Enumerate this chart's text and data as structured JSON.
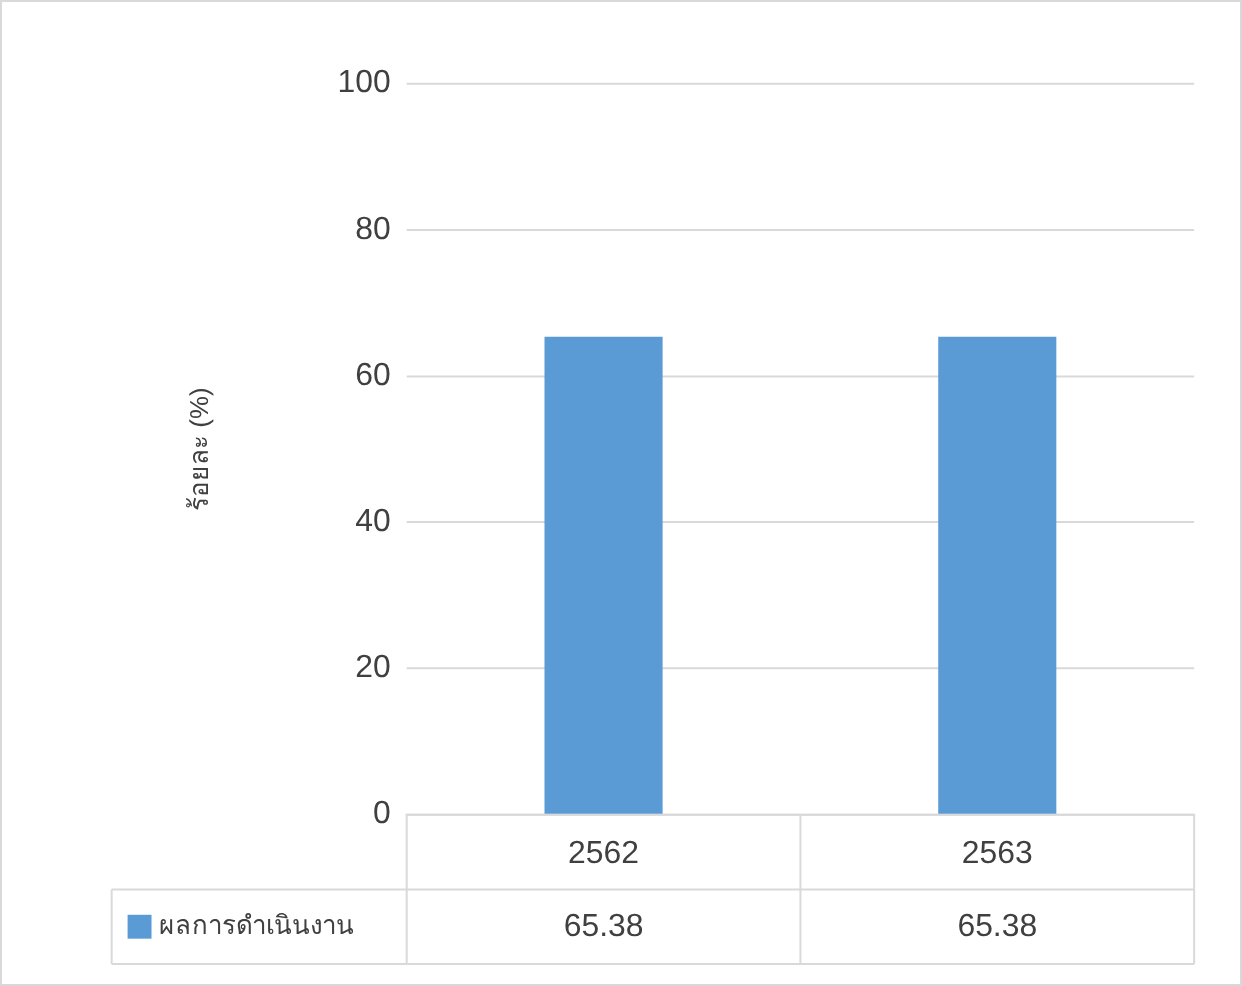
{
  "chart_data": {
    "type": "bar",
    "ylabel": "ร้อยละ (%)",
    "categories": [
      "2562",
      "2563"
    ],
    "series": [
      {
        "name": "ผลการดำเนินงาน",
        "color": "#5b9bd5",
        "values": [
          65.38,
          65.38
        ]
      }
    ],
    "ylim": [
      0,
      100
    ],
    "yticks": [
      0,
      20,
      40,
      60,
      80,
      100
    ],
    "grid": "y",
    "legend": "bottom",
    "data_labels": true
  }
}
